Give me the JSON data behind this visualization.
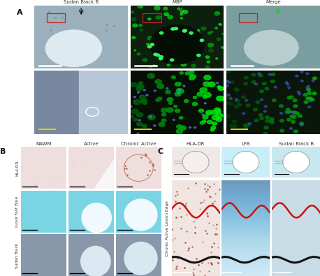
{
  "title_A": "A",
  "title_B": "B",
  "title_C": "C",
  "panel_A": {
    "col_labels": [
      "Sudan Black B",
      "MBP",
      "Merge"
    ],
    "r1_bg": [
      "#9ab0bc",
      "#1a2e1a",
      "#8faaa8"
    ],
    "r2_bg": [
      "#8898a8",
      "#060e06",
      "#203020"
    ],
    "lesion_r1": [
      "#dce8ee",
      "#000000",
      "#c0cccc"
    ],
    "green_bright": "#22dd55",
    "green_dim": "#0a880a"
  },
  "panel_B": {
    "row_labels": [
      "HLA-DR",
      "Luxol Fast Blue",
      "Sudan Black"
    ],
    "col_labels": [
      "NAWM",
      "Active",
      "Chronic Active"
    ],
    "r1_bg": "#f0dede",
    "r2_bg": "#7dd8e8",
    "r3_bg": "#8090a0",
    "r1_lesion": "#f8f0f0",
    "r2_lesion": "#f0fbfd",
    "r3_lesion": "#d8e8f0"
  },
  "panel_C": {
    "col_labels": [
      "HLA-DR",
      "LFB",
      "Sudan Black B"
    ],
    "row_label": "Chronic Active Lesion Edge",
    "top_bg": [
      "#f0e8e5",
      "#c8eef8",
      "#c8e8f0"
    ],
    "bot_bg": [
      "#f0e5e0",
      "#b5e0f0",
      "#c8dce5"
    ],
    "red_line": "#cc1111",
    "black_line": "#111111"
  },
  "bg_color": "#ffffff",
  "title_fontsize": 8,
  "col_label_fontsize": 5.0,
  "row_label_fontsize": 4.2
}
